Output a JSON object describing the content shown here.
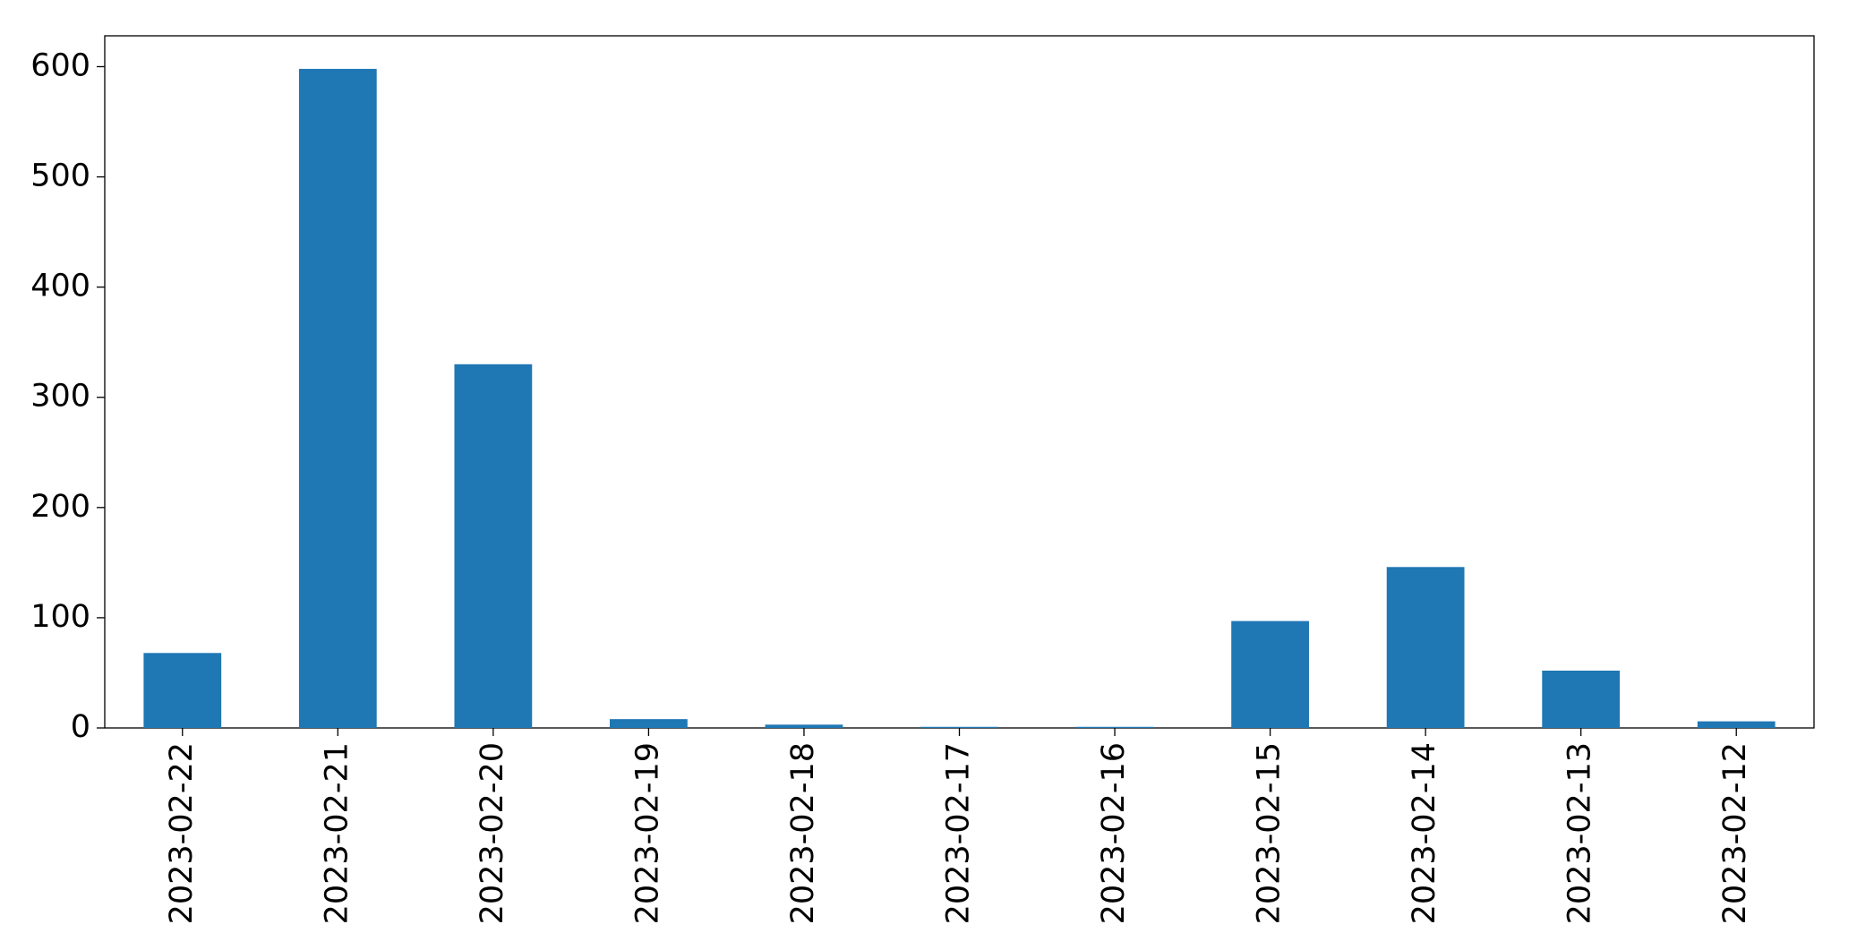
{
  "chart_data": {
    "type": "bar",
    "categories": [
      "2023-02-22",
      "2023-02-21",
      "2023-02-20",
      "2023-02-19",
      "2023-02-18",
      "2023-02-17",
      "2023-02-16",
      "2023-02-15",
      "2023-02-14",
      "2023-02-13",
      "2023-02-12"
    ],
    "values": [
      68,
      598,
      330,
      8,
      3,
      1,
      1,
      97,
      146,
      52,
      6
    ],
    "color": "#1f77b4",
    "ylim": [
      0,
      628
    ],
    "yticks": [
      0,
      100,
      200,
      300,
      400,
      500,
      600
    ],
    "grid": false
  }
}
